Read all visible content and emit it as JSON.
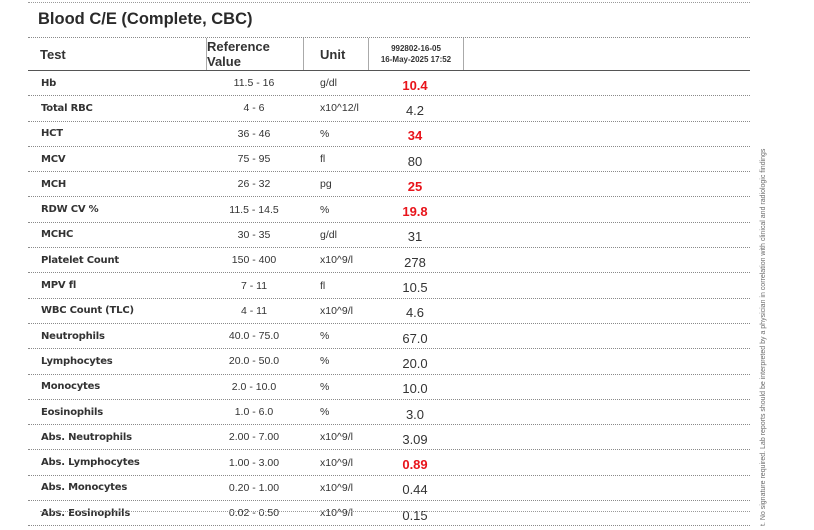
{
  "report": {
    "title": "Blood C/E (Complete, CBC)",
    "columns": {
      "test": "Test",
      "reference": "Reference Value",
      "unit": "Unit",
      "sample_id": "992802-16-05",
      "sample_datetime": "16-May-2025 17:52"
    },
    "rows": [
      {
        "test": "Hb",
        "ref_low": "11.5",
        "ref_high": "16",
        "unit": "g/dl",
        "result": "10.4",
        "flag": true
      },
      {
        "test": "Total RBC",
        "ref_low": "4",
        "ref_high": "6",
        "unit": "x10^12/l",
        "result": "4.2",
        "flag": false
      },
      {
        "test": "HCT",
        "ref_low": "36",
        "ref_high": "46",
        "unit": "%",
        "result": "34",
        "flag": true
      },
      {
        "test": "MCV",
        "ref_low": "75",
        "ref_high": "95",
        "unit": "fl",
        "result": "80",
        "flag": false
      },
      {
        "test": "MCH",
        "ref_low": "26",
        "ref_high": "32",
        "unit": "pg",
        "result": "25",
        "flag": true
      },
      {
        "test": "RDW CV %",
        "ref_low": "11.5",
        "ref_high": "14.5",
        "unit": "%",
        "result": "19.8",
        "flag": true
      },
      {
        "test": "MCHC",
        "ref_low": "30",
        "ref_high": "35",
        "unit": "g/dl",
        "result": "31",
        "flag": false
      },
      {
        "test": "Platelet Count",
        "ref_low": "150",
        "ref_high": "400",
        "unit": "x10^9/l",
        "result": "278",
        "flag": false
      },
      {
        "test": "MPV fl",
        "ref_low": "7",
        "ref_high": "11",
        "unit": "fl",
        "result": "10.5",
        "flag": false
      },
      {
        "test": "WBC Count (TLC)",
        "ref_low": "4",
        "ref_high": "11",
        "unit": "x10^9/l",
        "result": "4.6",
        "flag": false
      },
      {
        "test": "Neutrophils",
        "ref_low": "40.0",
        "ref_high": "75.0",
        "unit": "%",
        "result": "67.0",
        "flag": false
      },
      {
        "test": "Lymphocytes",
        "ref_low": "20.0",
        "ref_high": "50.0",
        "unit": "%",
        "result": "20.0",
        "flag": false
      },
      {
        "test": "Monocytes",
        "ref_low": "2.0",
        "ref_high": "10.0",
        "unit": "%",
        "result": "10.0",
        "flag": false
      },
      {
        "test": "Eosinophils",
        "ref_low": "1.0",
        "ref_high": "6.0",
        "unit": "%",
        "result": "3.0",
        "flag": false
      },
      {
        "test": "Abs. Neutrophils",
        "ref_low": "2.00",
        "ref_high": "7.00",
        "unit": "x10^9/l",
        "result": "3.09",
        "flag": false
      },
      {
        "test": "Abs. Lymphocytes",
        "ref_low": "1.00",
        "ref_high": "3.00",
        "unit": "x10^9/l",
        "result": "0.89",
        "flag": true
      },
      {
        "test": "Abs. Monocytes",
        "ref_low": "0.20",
        "ref_high": "1.00",
        "unit": "x10^9/l",
        "result": "0.44",
        "flag": false
      },
      {
        "test": "Abs. Eosinophils",
        "ref_low": "0.02",
        "ref_high": "0.50",
        "unit": "x10^9/l",
        "result": "0.15",
        "flag": false
      }
    ],
    "side_note": "t. No signature required. Lab reports should be interpreted by a physician in correlation with clinical and radiologic findings"
  },
  "colors": {
    "flag": "#e8141b",
    "text": "#333333",
    "rule": "#8a8a8a"
  }
}
